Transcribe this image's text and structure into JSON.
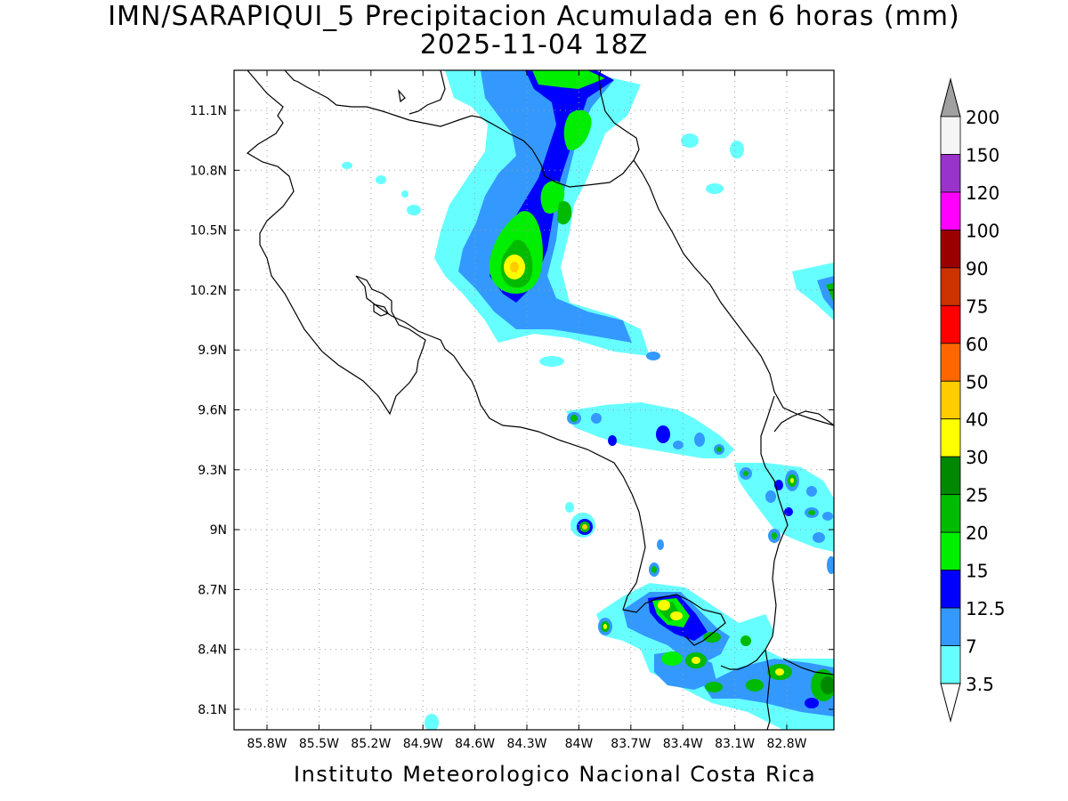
{
  "title_line1": "IMN/SARAPIQUI_5 Precipitacion Acumulada en 6 horas (mm)",
  "title_line2": "2025-11-04 18Z",
  "footer": "Instituto Meteorologico Nacional Costa Rica",
  "lat_ticks": [
    "11.1N",
    "10.8N",
    "10.5N",
    "10.2N",
    "9.9N",
    "9.6N",
    "9.3N",
    "9N",
    "8.7N",
    "8.4N",
    "8.1N"
  ],
  "lon_ticks": [
    "85.8W",
    "85.5W",
    "85.2W",
    "84.9W",
    "84.6W",
    "84.3W",
    "84W",
    "83.7W",
    "83.4W",
    "83.1W",
    "82.8W"
  ],
  "colorbar": {
    "labels": [
      "200",
      "150",
      "120",
      "100",
      "90",
      "75",
      "60",
      "50",
      "40",
      "30",
      "25",
      "20",
      "15",
      "12.5",
      "7",
      "3.5"
    ],
    "colors_top_to_bottom": [
      "#f5f5f5",
      "#9933cc",
      "#ff00ff",
      "#990000",
      "#cc3300",
      "#ff0000",
      "#ff6600",
      "#ffcc00",
      "#ffff00",
      "#008800",
      "#00bb00",
      "#00ee00",
      "#0000ff",
      "#3399ff",
      "#66ffff"
    ],
    "over_color": "#a0a0a0"
  },
  "colors": {
    "c3_5": "#66ffff",
    "c7": "#3399ff",
    "c12_5": "#0000ff",
    "c15": "#00ee00",
    "c20": "#00bb00",
    "c25": "#008800",
    "c30": "#ffff00",
    "c40": "#ffcc00",
    "c50": "#ff6600"
  }
}
